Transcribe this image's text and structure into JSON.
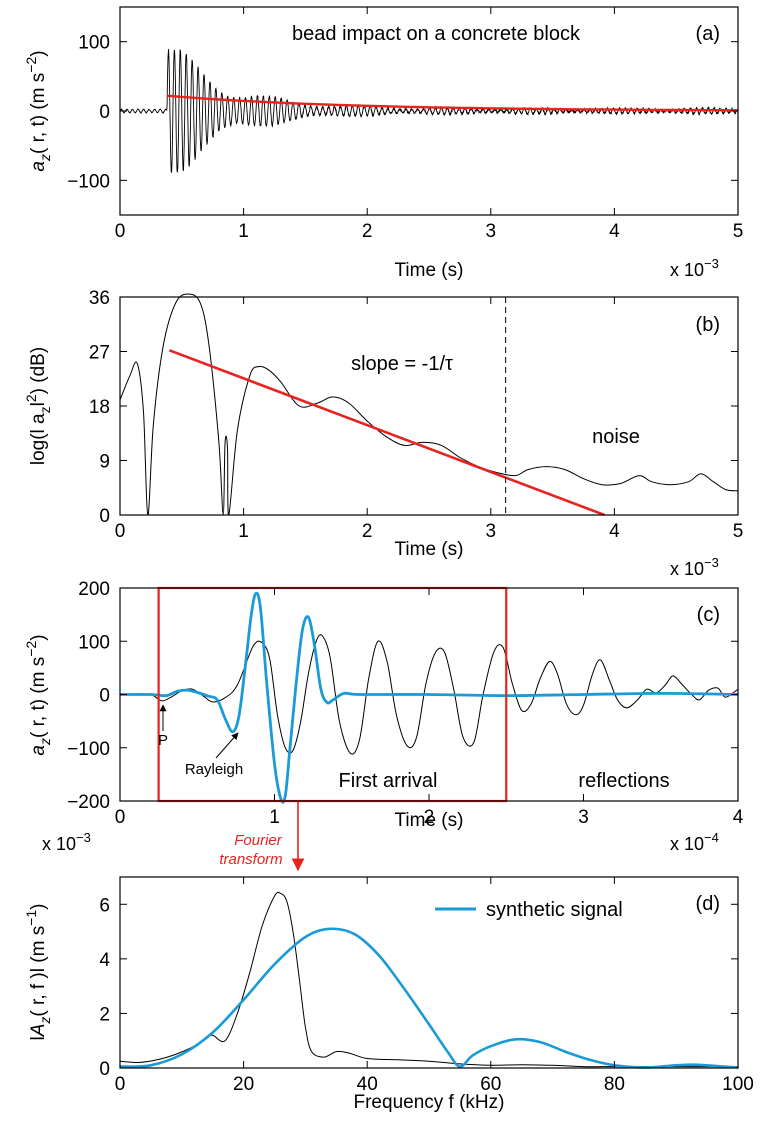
{
  "chart_data": [
    {
      "id": "a",
      "type": "line",
      "panel_label": "(a)",
      "title": "bead impact on a concrete block",
      "xlabel": "Time (s)",
      "x_multiplier": "x 10",
      "x_multiplier_exp": "−3",
      "ylabel": {
        "base": "a",
        "sub": "z",
        "args": "( r, t) (m s",
        "sup": "−2",
        "close": ")"
      },
      "xlim": [
        0,
        5
      ],
      "ylim": [
        -150,
        150
      ],
      "xticks": [
        "0",
        "1",
        "2",
        "3",
        "4",
        "5"
      ],
      "yticks": [
        {
          "v": 100,
          "label": "100"
        },
        {
          "v": 0,
          "label": "0"
        },
        {
          "v": -100,
          "label": "−100"
        }
      ],
      "colors": {
        "signal": "#000000",
        "envelope": "#e8231f"
      },
      "signal": {
        "onset": 0.38,
        "baseline_amplitude": 3,
        "peak_amplitude": 112,
        "oscillation_period": 0.048,
        "decay_time": 0.45,
        "tail_amplitude": 4
      },
      "envelope": {
        "x_start": 0.38,
        "x_end": 5.0,
        "y_start": 22,
        "decay_time": 1.5
      }
    },
    {
      "id": "b",
      "type": "line",
      "panel_label": "(b)",
      "xlabel": "Time (s)",
      "x_multiplier": "x 10",
      "x_multiplier_exp": "−3",
      "ylabel": {
        "base": "log(l a",
        "sub": "z",
        "args": "l",
        "sup": "2",
        "close": ") (dB)"
      },
      "xlim": [
        0,
        5
      ],
      "ylim": [
        0,
        36
      ],
      "xticks": [
        "0",
        "1",
        "2",
        "3",
        "4",
        "5"
      ],
      "yticks": [
        {
          "v": 36,
          "label": "36"
        },
        {
          "v": 27,
          "label": "27"
        },
        {
          "v": 18,
          "label": "18"
        },
        {
          "v": 9,
          "label": "9"
        },
        {
          "v": 0,
          "label": "0"
        }
      ],
      "colors": {
        "curve": "#000000",
        "fit": "#e8231f"
      },
      "curve_points": [
        [
          0,
          19
        ],
        [
          0.08,
          23
        ],
        [
          0.14,
          25
        ],
        [
          0.19,
          17
        ],
        [
          0.225,
          0
        ],
        [
          0.27,
          15
        ],
        [
          0.35,
          28
        ],
        [
          0.45,
          35
        ],
        [
          0.55,
          36.5
        ],
        [
          0.65,
          35
        ],
        [
          0.72,
          28
        ],
        [
          0.8,
          12
        ],
        [
          0.835,
          0
        ],
        [
          0.85,
          12
        ],
        [
          0.87,
          11
        ],
        [
          0.88,
          0
        ],
        [
          0.95,
          14
        ],
        [
          1.05,
          23
        ],
        [
          1.12,
          24.5
        ],
        [
          1.2,
          24
        ],
        [
          1.3,
          22
        ],
        [
          1.45,
          18
        ],
        [
          1.6,
          18.5
        ],
        [
          1.72,
          19.5
        ],
        [
          1.85,
          18.5
        ],
        [
          2.0,
          15.5
        ],
        [
          2.15,
          13
        ],
        [
          2.3,
          11.5
        ],
        [
          2.45,
          12
        ],
        [
          2.6,
          11.5
        ],
        [
          2.75,
          9.5
        ],
        [
          2.9,
          8
        ],
        [
          3.05,
          7
        ],
        [
          3.2,
          6.5
        ],
        [
          3.3,
          7.5
        ],
        [
          3.45,
          8
        ],
        [
          3.6,
          7.5
        ],
        [
          3.75,
          6
        ],
        [
          3.9,
          5
        ],
        [
          4.05,
          5.2
        ],
        [
          4.2,
          6.5
        ],
        [
          4.3,
          5.5
        ],
        [
          4.45,
          5
        ],
        [
          4.6,
          5.5
        ],
        [
          4.7,
          6.8
        ],
        [
          4.8,
          5.5
        ],
        [
          4.9,
          4.2
        ],
        [
          5.0,
          4.0
        ]
      ],
      "fit_line": {
        "x": [
          0.4,
          3.92
        ],
        "y": [
          27.2,
          0
        ]
      },
      "annotations": {
        "slope": "slope = -1/τ",
        "noise": "noise"
      },
      "cutoff_x": 3.12
    },
    {
      "id": "c",
      "type": "line",
      "panel_label": "(c)",
      "xlabel": "Time (s)",
      "x_multiplier": "x 10",
      "x_multiplier_exp": "−4",
      "left_multiplier": "x 10",
      "left_multiplier_exp": "−3",
      "ylabel": {
        "base": "a",
        "sub": "z",
        "args": "( r, t) (m s",
        "sup": "−2",
        "close": ")"
      },
      "xlim": [
        0,
        4
      ],
      "ylim": [
        -200,
        200
      ],
      "xticks": [
        "0",
        "1",
        "2",
        "3",
        "4"
      ],
      "yticks": [
        {
          "v": 200,
          "label": "200"
        },
        {
          "v": 100,
          "label": "100"
        },
        {
          "v": 0,
          "label": "0"
        },
        {
          "v": -100,
          "label": "−100"
        },
        {
          "v": -200,
          "label": "−200"
        }
      ],
      "colors": {
        "measured": "#000000",
        "synthetic": "#1a9ad7",
        "window": "#e8231f"
      },
      "measured_points": [
        [
          0,
          0
        ],
        [
          0.1,
          0
        ],
        [
          0.2,
          0
        ],
        [
          0.27,
          -12
        ],
        [
          0.33,
          -5
        ],
        [
          0.4,
          7
        ],
        [
          0.47,
          10
        ],
        [
          0.54,
          -3
        ],
        [
          0.6,
          -14
        ],
        [
          0.68,
          -6
        ],
        [
          0.76,
          18
        ],
        [
          0.86,
          90
        ],
        [
          0.92,
          97
        ],
        [
          0.97,
          65
        ],
        [
          1.02,
          -40
        ],
        [
          1.07,
          -100
        ],
        [
          1.12,
          -105
        ],
        [
          1.17,
          -50
        ],
        [
          1.22,
          40
        ],
        [
          1.27,
          100
        ],
        [
          1.31,
          110
        ],
        [
          1.36,
          70
        ],
        [
          1.42,
          -50
        ],
        [
          1.49,
          -110
        ],
        [
          1.55,
          -85
        ],
        [
          1.61,
          30
        ],
        [
          1.67,
          100
        ],
        [
          1.73,
          60
        ],
        [
          1.79,
          -40
        ],
        [
          1.86,
          -97
        ],
        [
          1.92,
          -80
        ],
        [
          1.98,
          20
        ],
        [
          2.04,
          78
        ],
        [
          2.1,
          80
        ],
        [
          2.16,
          10
        ],
        [
          2.22,
          -80
        ],
        [
          2.29,
          -90
        ],
        [
          2.35,
          0
        ],
        [
          2.42,
          80
        ],
        [
          2.48,
          88
        ],
        [
          2.54,
          20
        ],
        [
          2.6,
          -30
        ],
        [
          2.66,
          -18
        ],
        [
          2.72,
          30
        ],
        [
          2.78,
          62
        ],
        [
          2.83,
          40
        ],
        [
          2.89,
          -18
        ],
        [
          2.95,
          -38
        ],
        [
          3.0,
          -20
        ],
        [
          3.06,
          40
        ],
        [
          3.11,
          65
        ],
        [
          3.17,
          25
        ],
        [
          3.22,
          -10
        ],
        [
          3.28,
          -25
        ],
        [
          3.35,
          -10
        ],
        [
          3.41,
          10
        ],
        [
          3.47,
          3
        ],
        [
          3.53,
          18
        ],
        [
          3.58,
          35
        ],
        [
          3.64,
          18
        ],
        [
          3.7,
          0
        ],
        [
          3.75,
          -10
        ],
        [
          3.81,
          8
        ],
        [
          3.87,
          12
        ],
        [
          3.92,
          -5
        ],
        [
          4.0,
          10
        ]
      ],
      "synthetic_points": [
        [
          0,
          0
        ],
        [
          0.2,
          0
        ],
        [
          0.3,
          -2
        ],
        [
          0.37,
          6
        ],
        [
          0.44,
          8
        ],
        [
          0.51,
          3
        ],
        [
          0.57,
          -3
        ],
        [
          0.63,
          -10
        ],
        [
          0.68,
          -45
        ],
        [
          0.73,
          -70
        ],
        [
          0.77,
          -40
        ],
        [
          0.81,
          50
        ],
        [
          0.85,
          150
        ],
        [
          0.88,
          190
        ],
        [
          0.91,
          160
        ],
        [
          0.95,
          20
        ],
        [
          1.0,
          -130
        ],
        [
          1.04,
          -195
        ],
        [
          1.07,
          -190
        ],
        [
          1.1,
          -100
        ],
        [
          1.14,
          20
        ],
        [
          1.18,
          120
        ],
        [
          1.22,
          145
        ],
        [
          1.26,
          90
        ],
        [
          1.3,
          10
        ],
        [
          1.34,
          -15
        ],
        [
          1.38,
          -10
        ],
        [
          1.45,
          2
        ],
        [
          1.55,
          0
        ],
        [
          2.0,
          0
        ],
        [
          2.5,
          -2
        ],
        [
          3.0,
          0
        ],
        [
          3.5,
          2
        ],
        [
          4.0,
          0
        ]
      ],
      "window": {
        "x": [
          0.25,
          2.5
        ],
        "y": [
          -200,
          200
        ]
      },
      "annotations": {
        "P": "P",
        "Rayleigh": "Rayleigh",
        "first_arrival": "First arrival",
        "reflections": "reflections"
      }
    },
    {
      "id": "d",
      "type": "line",
      "panel_label": "(d)",
      "xlabel": "Frequency f (kHz)",
      "ylabel": {
        "base": "l",
        "tilde": "~",
        "sub": "z",
        "letter": "A",
        "args": "( r,  f )l (m s",
        "sup": "−1",
        "close": ")"
      },
      "xlim": [
        0,
        100
      ],
      "ylim": [
        0,
        7
      ],
      "xticks": [
        "0",
        "20",
        "40",
        "60",
        "80",
        "100"
      ],
      "yticks": [
        {
          "v": 6,
          "label": "6"
        },
        {
          "v": 4,
          "label": "4"
        },
        {
          "v": 2,
          "label": "2"
        },
        {
          "v": 0,
          "label": "0"
        }
      ],
      "colors": {
        "measured": "#000000",
        "synthetic": "#1a9ad7"
      },
      "legend": {
        "entry": "synthetic signal",
        "position": "top-right"
      },
      "measured_points": [
        [
          0,
          0.25
        ],
        [
          3,
          0.2
        ],
        [
          6,
          0.3
        ],
        [
          9,
          0.5
        ],
        [
          12,
          0.8
        ],
        [
          14,
          1.1
        ],
        [
          15,
          1.2
        ],
        [
          17,
          1.0
        ],
        [
          19,
          2.0
        ],
        [
          21,
          3.5
        ],
        [
          23,
          5.2
        ],
        [
          25,
          6.3
        ],
        [
          26,
          6.4
        ],
        [
          27,
          6.1
        ],
        [
          28,
          5.0
        ],
        [
          29,
          3.3
        ],
        [
          30,
          1.5
        ],
        [
          31,
          0.6
        ],
        [
          33,
          0.4
        ],
        [
          35,
          0.6
        ],
        [
          37,
          0.55
        ],
        [
          40,
          0.35
        ],
        [
          45,
          0.3
        ],
        [
          50,
          0.25
        ],
        [
          55,
          0.15
        ],
        [
          60,
          0.1
        ],
        [
          65,
          0.12
        ],
        [
          70,
          0.1
        ],
        [
          75,
          0.05
        ],
        [
          80,
          0.05
        ],
        [
          85,
          0.05
        ],
        [
          90,
          0.05
        ],
        [
          95,
          0.05
        ],
        [
          100,
          0.05
        ]
      ],
      "synthetic_points": [
        [
          0,
          0.05
        ],
        [
          5,
          0.1
        ],
        [
          10,
          0.5
        ],
        [
          15,
          1.3
        ],
        [
          20,
          2.5
        ],
        [
          25,
          3.8
        ],
        [
          30,
          4.8
        ],
        [
          34,
          5.1
        ],
        [
          38,
          4.9
        ],
        [
          42,
          4.1
        ],
        [
          46,
          2.9
        ],
        [
          50,
          1.6
        ],
        [
          53,
          0.6
        ],
        [
          55,
          0.05
        ],
        [
          57,
          0.45
        ],
        [
          60,
          0.8
        ],
        [
          64,
          1.05
        ],
        [
          68,
          0.95
        ],
        [
          72,
          0.6
        ],
        [
          76,
          0.3
        ],
        [
          80,
          0.1
        ],
        [
          85,
          0.02
        ],
        [
          90,
          0.1
        ],
        [
          93,
          0.12
        ],
        [
          96,
          0.08
        ],
        [
          100,
          0.02
        ]
      ]
    }
  ],
  "connector": {
    "line1": "Fourier",
    "line2": "transform"
  }
}
